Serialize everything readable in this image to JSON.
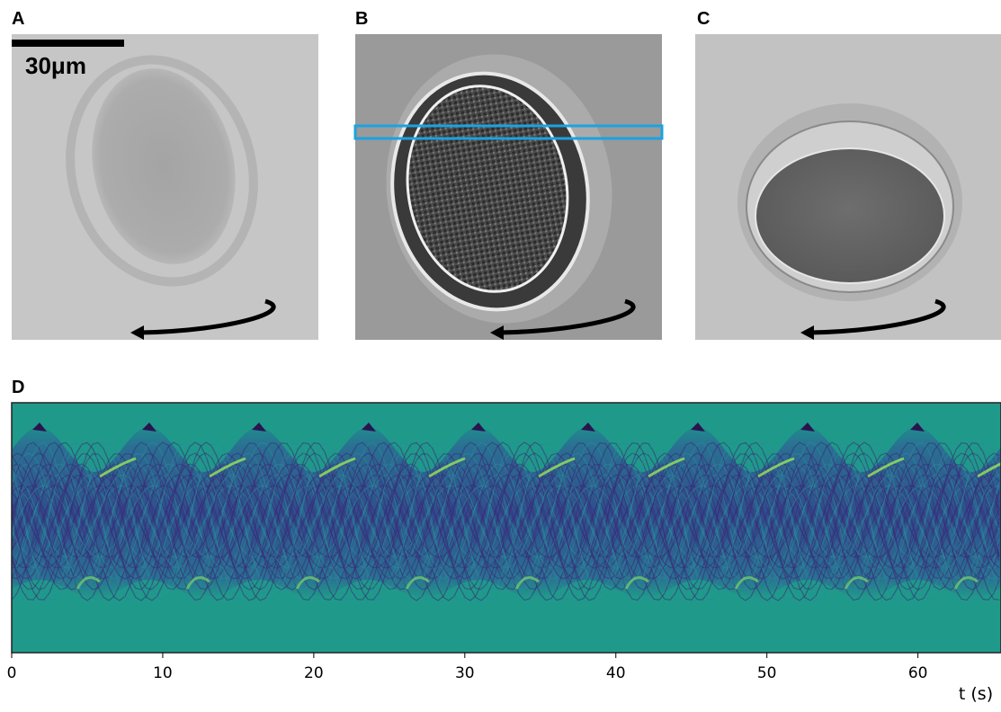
{
  "panels": {
    "a": {
      "label": "A",
      "scale_bar": "30μm"
    },
    "b": {
      "label": "B"
    },
    "c": {
      "label": "C"
    },
    "d": {
      "label": "D",
      "xlim": [
        0,
        65.5
      ],
      "xticks": [
        0,
        10,
        20,
        30,
        40,
        50,
        60
      ],
      "xlabel": "t (s)"
    }
  }
}
